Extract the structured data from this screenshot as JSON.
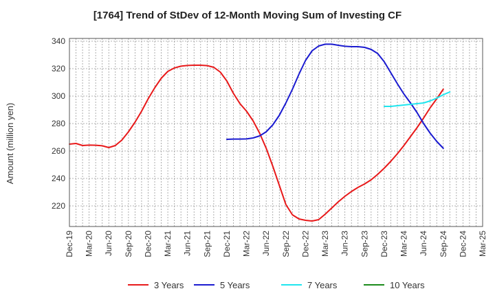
{
  "chart_data": {
    "type": "line",
    "title": "[1764]  Trend of StDev of 12-Month Moving Sum of Investing CF",
    "xlabel": "",
    "ylabel": "Amount (million yen)",
    "ylim": [
      205,
      342
    ],
    "yticks": [
      220,
      240,
      260,
      280,
      300,
      320,
      340
    ],
    "x_tick_labels": [
      "Dec-19",
      "Mar-20",
      "Jun-20",
      "Sep-20",
      "Dec-20",
      "Mar-21",
      "Jun-21",
      "Sep-21",
      "Dec-21",
      "Mar-22",
      "Jun-22",
      "Sep-22",
      "Dec-22",
      "Mar-23",
      "Jun-23",
      "Sep-23",
      "Dec-23",
      "Mar-24",
      "Jun-24",
      "Sep-24",
      "Dec-24",
      "Mar-25"
    ],
    "grid": true,
    "legend_position": "bottom",
    "series": [
      {
        "name": "3 Years",
        "color": "#e8191a",
        "points": [
          [
            "Dec-19",
            265
          ],
          [
            "Jan-20",
            265.5
          ],
          [
            "Feb-20",
            264
          ],
          [
            "Mar-20",
            264.3
          ],
          [
            "Apr-20",
            264.2
          ],
          [
            "May-20",
            263.8
          ],
          [
            "Jun-20",
            262.5
          ],
          [
            "Jul-20",
            264
          ],
          [
            "Aug-20",
            268
          ],
          [
            "Sep-20",
            274
          ],
          [
            "Oct-20",
            281
          ],
          [
            "Nov-20",
            289
          ],
          [
            "Dec-20",
            298
          ],
          [
            "Jan-21",
            306
          ],
          [
            "Feb-21",
            313
          ],
          [
            "Mar-21",
            318
          ],
          [
            "Apr-21",
            320.5
          ],
          [
            "May-21",
            321.8
          ],
          [
            "Jun-21",
            322.3
          ],
          [
            "Jul-21",
            322.5
          ],
          [
            "Aug-21",
            322.5
          ],
          [
            "Sep-21",
            322.2
          ],
          [
            "Oct-21",
            321
          ],
          [
            "Nov-21",
            317.5
          ],
          [
            "Dec-21",
            311
          ],
          [
            "Jan-22",
            302
          ],
          [
            "Feb-22",
            294.5
          ],
          [
            "Mar-22",
            289
          ],
          [
            "Apr-22",
            282
          ],
          [
            "May-22",
            273
          ],
          [
            "Jun-22",
            262
          ],
          [
            "Jul-22",
            249
          ],
          [
            "Aug-22",
            235
          ],
          [
            "Sep-22",
            221
          ],
          [
            "Oct-22",
            213.5
          ],
          [
            "Nov-22",
            210.5
          ],
          [
            "Dec-22",
            209.5
          ],
          [
            "Jan-23",
            209
          ],
          [
            "Feb-23",
            210
          ],
          [
            "Mar-23",
            214
          ],
          [
            "Apr-23",
            218.5
          ],
          [
            "May-23",
            223
          ],
          [
            "Jun-23",
            227
          ],
          [
            "Jul-23",
            230.5
          ],
          [
            "Aug-23",
            233.5
          ],
          [
            "Sep-23",
            236
          ],
          [
            "Oct-23",
            239
          ],
          [
            "Nov-23",
            243
          ],
          [
            "Dec-23",
            247.5
          ],
          [
            "Jan-24",
            252.5
          ],
          [
            "Feb-24",
            258
          ],
          [
            "Mar-24",
            264
          ],
          [
            "Apr-24",
            270.5
          ],
          [
            "May-24",
            277
          ],
          [
            "Jun-24",
            284
          ],
          [
            "Jul-24",
            291.5
          ],
          [
            "Aug-24",
            298
          ],
          [
            "Sep-24",
            305
          ]
        ]
      },
      {
        "name": "5 Years",
        "color": "#1a1ad0",
        "points": [
          [
            "Dec-21",
            268.5
          ],
          [
            "Jan-22",
            268.7
          ],
          [
            "Feb-22",
            268.7
          ],
          [
            "Mar-22",
            268.8
          ],
          [
            "Apr-22",
            269.5
          ],
          [
            "May-22",
            271
          ],
          [
            "Jun-22",
            274
          ],
          [
            "Jul-22",
            279
          ],
          [
            "Aug-22",
            286
          ],
          [
            "Sep-22",
            295
          ],
          [
            "Oct-22",
            305
          ],
          [
            "Nov-22",
            316
          ],
          [
            "Dec-22",
            326
          ],
          [
            "Jan-23",
            333
          ],
          [
            "Feb-23",
            336.5
          ],
          [
            "Mar-23",
            337.8
          ],
          [
            "Apr-23",
            337.8
          ],
          [
            "May-23",
            337
          ],
          [
            "Jun-23",
            336.3
          ],
          [
            "Jul-23",
            336
          ],
          [
            "Aug-23",
            336
          ],
          [
            "Sep-23",
            335.5
          ],
          [
            "Oct-23",
            334
          ],
          [
            "Nov-23",
            331
          ],
          [
            "Dec-23",
            325
          ],
          [
            "Jan-24",
            317
          ],
          [
            "Feb-24",
            309
          ],
          [
            "Mar-24",
            301.5
          ],
          [
            "Apr-24",
            295
          ],
          [
            "May-24",
            288
          ],
          [
            "Jun-24",
            280
          ],
          [
            "Jul-24",
            273
          ],
          [
            "Aug-24",
            267
          ],
          [
            "Sep-24",
            262
          ]
        ]
      },
      {
        "name": "7 Years",
        "color": "#1ee5ee",
        "points": [
          [
            "Dec-23",
            292.5
          ],
          [
            "Jan-24",
            292.5
          ],
          [
            "Feb-24",
            293
          ],
          [
            "Mar-24",
            293.5
          ],
          [
            "Apr-24",
            294
          ],
          [
            "May-24",
            294.5
          ],
          [
            "Jun-24",
            295
          ],
          [
            "Jul-24",
            296.5
          ],
          [
            "Aug-24",
            298.5
          ],
          [
            "Sep-24",
            301
          ],
          [
            "Oct-24",
            303
          ]
        ]
      },
      {
        "name": "10 Years",
        "color": "#1a8a1a",
        "points": []
      }
    ]
  }
}
